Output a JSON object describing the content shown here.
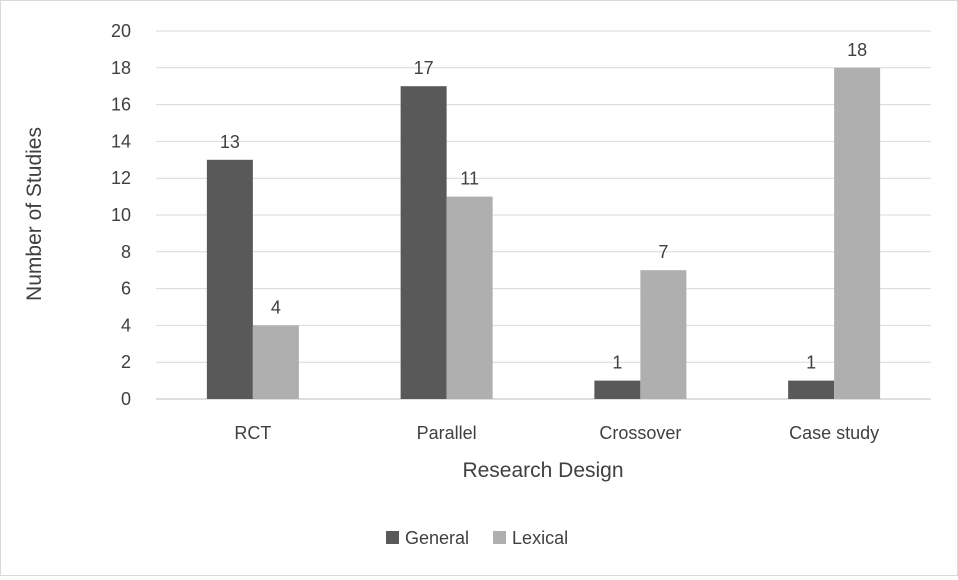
{
  "chart_data": {
    "type": "bar",
    "title": "",
    "xlabel": "Research Design",
    "ylabel": "Number of  Studies",
    "categories": [
      "RCT",
      "Parallel",
      "Crossover",
      "Case study"
    ],
    "series": [
      {
        "name": "General",
        "values": [
          13,
          17,
          1,
          1
        ],
        "color": "#595959"
      },
      {
        "name": "Lexical",
        "values": [
          4,
          11,
          7,
          18
        ],
        "color": "#afafaf"
      }
    ],
    "ylim": [
      0,
      20
    ],
    "ytick_step": 2,
    "grid": true,
    "legend_position": "bottom",
    "data_labels": true
  }
}
